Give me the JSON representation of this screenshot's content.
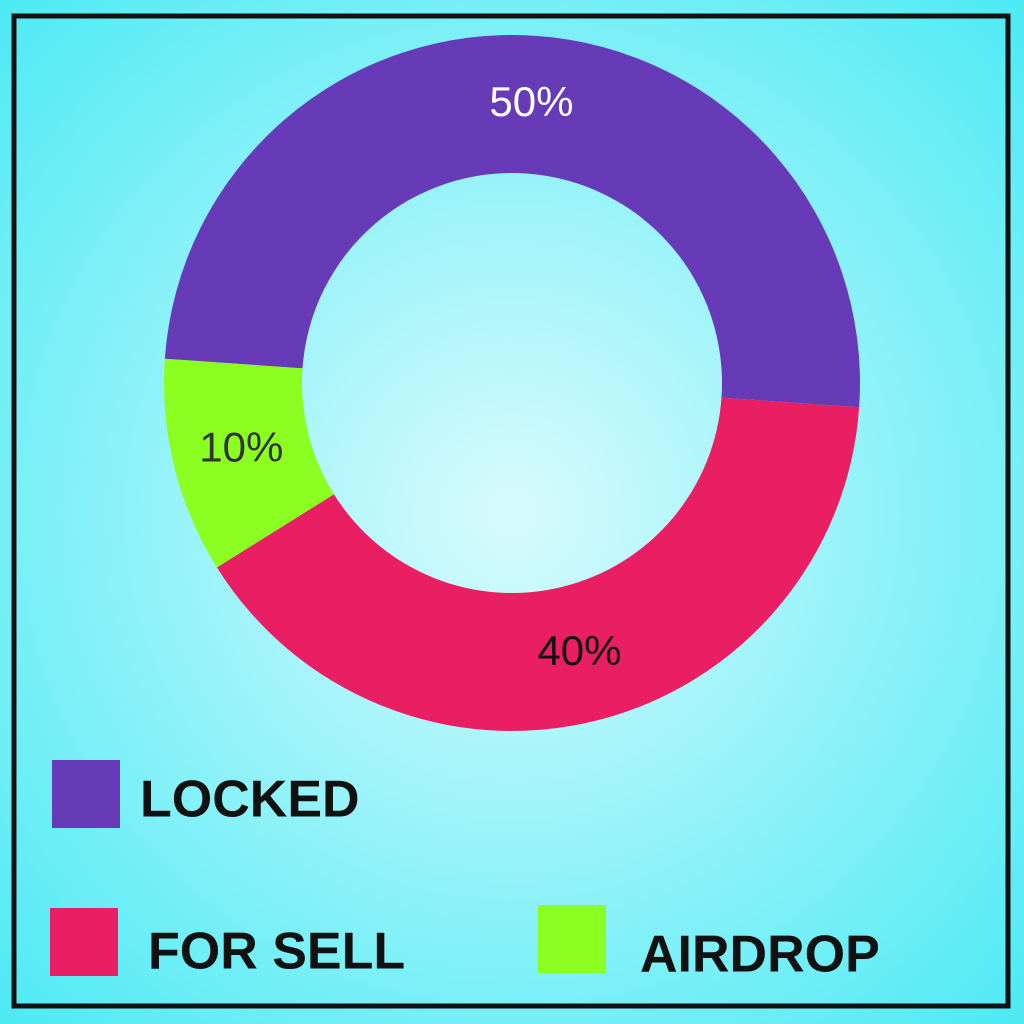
{
  "chart_data": {
    "type": "donut",
    "categories": [
      "LOCKED",
      "FOR SELL",
      "AIRDROP"
    ],
    "values": [
      50,
      40,
      10
    ],
    "value_labels": [
      "50%",
      "40%",
      "10%"
    ],
    "colors": [
      "#673ab7",
      "#e91e63",
      "#8bff22"
    ],
    "label_colors": [
      "#ffffff",
      "#111111",
      "#333333"
    ]
  }
}
